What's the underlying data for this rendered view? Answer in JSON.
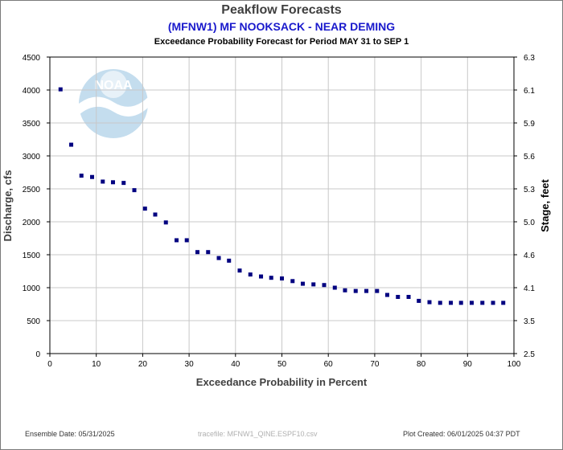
{
  "chart_data": {
    "type": "scatter",
    "title": "Peakflow Forecasts",
    "subtitle": "(MFNW1) MF NOOKSACK - NEAR DEMING",
    "subtitle2": "Exceedance Probability Forecast for Period MAY 31 to SEP 1",
    "xlabel": "Exceedance Probability in Percent",
    "ylabel": "Discharge, cfs",
    "y2label": "Stage, feet",
    "xlim": [
      0,
      100
    ],
    "ylim": [
      0,
      4500
    ],
    "xticks": [
      "0",
      "10",
      "20",
      "30",
      "40",
      "50",
      "60",
      "70",
      "80",
      "90",
      "100"
    ],
    "yticks": [
      "0",
      "500",
      "1000",
      "1500",
      "2000",
      "2500",
      "3000",
      "3500",
      "4000",
      "4500"
    ],
    "y2ticks": [
      {
        "label": "2.5",
        "discharge": 0
      },
      {
        "label": "3.5",
        "discharge": 500
      },
      {
        "label": "4.1",
        "discharge": 1000
      },
      {
        "label": "4.6",
        "discharge": 1500
      },
      {
        "label": "5.0",
        "discharge": 2000
      },
      {
        "label": "5.3",
        "discharge": 2500
      },
      {
        "label": "5.6",
        "discharge": 3000
      },
      {
        "label": "5.9",
        "discharge": 3500
      },
      {
        "label": "6.1",
        "discharge": 4000
      },
      {
        "label": "6.3",
        "discharge": 4500
      }
    ],
    "grid": true,
    "marker_color": "#000080",
    "series": [
      {
        "points": [
          [
            2.3,
            4010
          ],
          [
            4.6,
            3170
          ],
          [
            6.8,
            2700
          ],
          [
            9.1,
            2680
          ],
          [
            11.4,
            2610
          ],
          [
            13.6,
            2600
          ],
          [
            15.9,
            2590
          ],
          [
            18.2,
            2480
          ],
          [
            20.5,
            2200
          ],
          [
            22.7,
            2110
          ],
          [
            25.0,
            1990
          ],
          [
            27.3,
            1720
          ],
          [
            29.5,
            1720
          ],
          [
            31.8,
            1540
          ],
          [
            34.1,
            1540
          ],
          [
            36.4,
            1450
          ],
          [
            38.6,
            1410
          ],
          [
            40.9,
            1260
          ],
          [
            43.2,
            1200
          ],
          [
            45.5,
            1170
          ],
          [
            47.7,
            1150
          ],
          [
            50.0,
            1140
          ],
          [
            52.3,
            1100
          ],
          [
            54.5,
            1060
          ],
          [
            56.8,
            1050
          ],
          [
            59.1,
            1040
          ],
          [
            61.4,
            1000
          ],
          [
            63.6,
            960
          ],
          [
            65.9,
            950
          ],
          [
            68.2,
            950
          ],
          [
            70.5,
            950
          ],
          [
            72.7,
            890
          ],
          [
            75.0,
            860
          ],
          [
            77.3,
            860
          ],
          [
            79.5,
            800
          ],
          [
            81.8,
            780
          ],
          [
            84.1,
            770
          ],
          [
            86.4,
            770
          ],
          [
            88.6,
            770
          ],
          [
            90.9,
            770
          ],
          [
            93.2,
            770
          ],
          [
            95.5,
            770
          ],
          [
            97.7,
            770
          ]
        ]
      }
    ]
  },
  "footer": {
    "ensemble_date": "Ensemble Date: 05/31/2025",
    "tracefile": "tracefile: MFNW1_QINE.ESPF10.csv",
    "plot_created": "Plot Created: 06/01/2025 04:37 PDT"
  },
  "logo": {
    "text": "NOAA",
    "colors": [
      "#1a7bbf",
      "#cfe6f4"
    ]
  }
}
